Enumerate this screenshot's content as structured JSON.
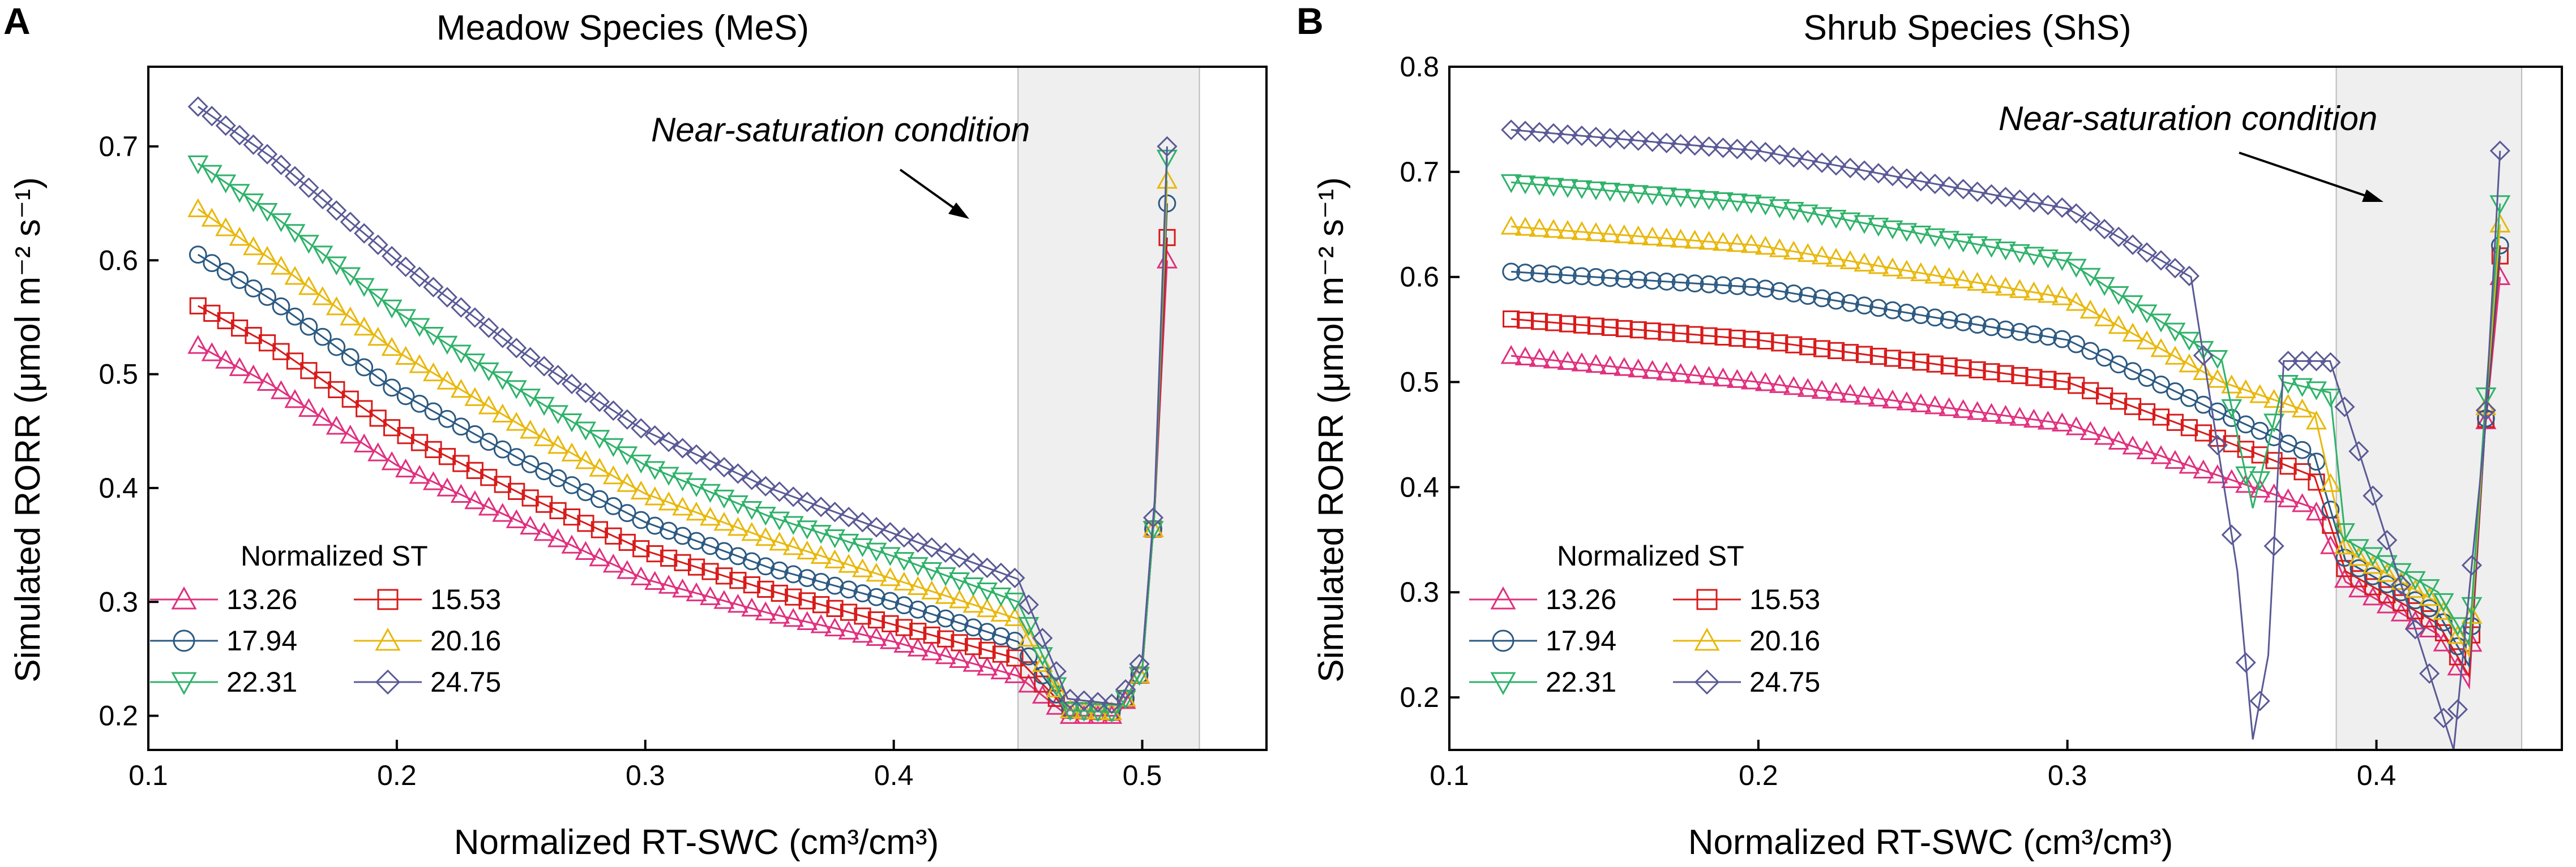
{
  "panels": [
    {
      "letter": "A",
      "title": "Meadow Species (MeS)",
      "xlabel": "Normalized RT-SWC (cm³/cm³)",
      "ylabel": "Simulated RORR (μmol m⁻² s⁻¹)",
      "annotation": "Near-saturation condition",
      "legend_title": "Normalized ST"
    },
    {
      "letter": "B",
      "title": "Shrub Species (ShS)",
      "xlabel": "Normalized RT-SWC (cm³/cm³)",
      "ylabel": "Simulated RORR (μmol m⁻² s⁻¹)",
      "annotation": "Near-saturation condition",
      "legend_title": "Normalized ST"
    }
  ],
  "colors": {
    "s13_26": "#e0307f",
    "s15_53": "#d81b1b",
    "s17_94": "#2c5a82",
    "s20_16": "#e8b80c",
    "s22_31": "#2fb26a",
    "s24_75": "#5a5a96",
    "shade": "#efefef"
  },
  "chart_data": [
    {
      "type": "scatter",
      "title": "Meadow Species (MeS)",
      "xlabel": "Normalized RT-SWC (cm³/cm³)",
      "ylabel": "Simulated RORR (μmol m⁻² s⁻¹)",
      "xlim": [
        0.1,
        0.55
      ],
      "ylim": [
        0.17,
        0.77
      ],
      "xticks": [
        "0.1",
        "0.2",
        "0.3",
        "0.4",
        "0.5"
      ],
      "xtick_values": [
        0.1,
        0.2,
        0.3,
        0.4,
        0.5
      ],
      "yticks": [
        "0.2",
        "0.3",
        "0.4",
        "0.5",
        "0.6",
        "0.7"
      ],
      "ytick_values": [
        0.2,
        0.3,
        0.4,
        0.5,
        0.6,
        0.7
      ],
      "shaded_region": [
        0.45,
        0.523
      ],
      "legend_title": "Normalized ST",
      "series": [
        {
          "name": "13.26",
          "marker": "triangle-up",
          "color_key": "s13_26",
          "x": [
            0.12,
            0.15,
            0.2,
            0.25,
            0.3,
            0.35,
            0.4,
            0.45,
            0.47,
            0.49,
            0.5,
            0.505,
            0.51
          ],
          "y": [
            0.525,
            0.49,
            0.42,
            0.37,
            0.32,
            0.29,
            0.265,
            0.235,
            0.2,
            0.2,
            0.24,
            0.38,
            0.6
          ]
        },
        {
          "name": "15.53",
          "marker": "square",
          "color_key": "s15_53",
          "x": [
            0.12,
            0.15,
            0.2,
            0.25,
            0.3,
            0.35,
            0.4,
            0.45,
            0.47,
            0.49,
            0.5,
            0.505,
            0.51
          ],
          "y": [
            0.56,
            0.525,
            0.45,
            0.395,
            0.345,
            0.31,
            0.28,
            0.25,
            0.205,
            0.203,
            0.24,
            0.38,
            0.62
          ]
        },
        {
          "name": "17.94",
          "marker": "circle",
          "color_key": "s17_94",
          "x": [
            0.12,
            0.15,
            0.2,
            0.25,
            0.3,
            0.35,
            0.4,
            0.45,
            0.47,
            0.49,
            0.5,
            0.505,
            0.51
          ],
          "y": [
            0.605,
            0.565,
            0.485,
            0.425,
            0.37,
            0.33,
            0.3,
            0.265,
            0.205,
            0.203,
            0.24,
            0.38,
            0.65
          ]
        },
        {
          "name": "20.16",
          "marker": "triangle-up",
          "color_key": "s20_16",
          "x": [
            0.12,
            0.15,
            0.2,
            0.25,
            0.3,
            0.35,
            0.4,
            0.45,
            0.47,
            0.49,
            0.5,
            0.505,
            0.51
          ],
          "y": [
            0.645,
            0.6,
            0.52,
            0.455,
            0.395,
            0.355,
            0.32,
            0.285,
            0.205,
            0.203,
            0.24,
            0.38,
            0.67
          ]
        },
        {
          "name": "22.31",
          "marker": "triangle-down",
          "color_key": "s22_31",
          "x": [
            0.12,
            0.15,
            0.2,
            0.25,
            0.3,
            0.35,
            0.4,
            0.45,
            0.47,
            0.49,
            0.5,
            0.505,
            0.51
          ],
          "y": [
            0.685,
            0.64,
            0.555,
            0.485,
            0.42,
            0.375,
            0.34,
            0.3,
            0.205,
            0.203,
            0.24,
            0.38,
            0.69
          ]
        },
        {
          "name": "24.75",
          "marker": "diamond",
          "color_key": "s24_75",
          "x": [
            0.12,
            0.15,
            0.2,
            0.25,
            0.3,
            0.35,
            0.4,
            0.45,
            0.47,
            0.49,
            0.5,
            0.505,
            0.51
          ],
          "y": [
            0.735,
            0.69,
            0.6,
            0.52,
            0.45,
            0.4,
            0.36,
            0.32,
            0.215,
            0.21,
            0.25,
            0.39,
            0.7
          ]
        }
      ]
    },
    {
      "type": "scatter",
      "title": "Shrub Species (ShS)",
      "xlabel": "Normalized RT-SWC (cm³/cm³)",
      "ylabel": "Simulated RORR (μmol m⁻² s⁻¹)",
      "xlim": [
        0.1,
        0.46
      ],
      "ylim": [
        0.15,
        0.8
      ],
      "xticks": [
        "0.1",
        "0.2",
        "0.3",
        "0.4"
      ],
      "xtick_values": [
        0.1,
        0.2,
        0.3,
        0.4
      ],
      "yticks": [
        "0.2",
        "0.3",
        "0.4",
        "0.5",
        "0.6",
        "0.7",
        "0.8"
      ],
      "ytick_values": [
        0.2,
        0.3,
        0.4,
        0.5,
        0.6,
        0.7,
        0.8
      ],
      "shaded_region": [
        0.387,
        0.447
      ],
      "legend_title": "Normalized ST",
      "series": [
        {
          "name": "13.26",
          "marker": "triangle-up",
          "color_key": "s13_26",
          "x": [
            0.12,
            0.2,
            0.3,
            0.35,
            0.38,
            0.39,
            0.42,
            0.43,
            0.435,
            0.44
          ],
          "y": [
            0.525,
            0.5,
            0.46,
            0.41,
            0.38,
            0.31,
            0.26,
            0.21,
            0.45,
            0.6
          ]
        },
        {
          "name": "15.53",
          "marker": "square",
          "color_key": "s15_53",
          "x": [
            0.12,
            0.2,
            0.3,
            0.35,
            0.38,
            0.39,
            0.42,
            0.43,
            0.435,
            0.44
          ],
          "y": [
            0.56,
            0.54,
            0.5,
            0.445,
            0.41,
            0.32,
            0.27,
            0.22,
            0.45,
            0.62
          ]
        },
        {
          "name": "17.94",
          "marker": "circle",
          "color_key": "s17_94",
          "x": [
            0.12,
            0.2,
            0.3,
            0.35,
            0.38,
            0.39,
            0.42,
            0.43,
            0.435,
            0.44
          ],
          "y": [
            0.605,
            0.59,
            0.54,
            0.47,
            0.43,
            0.33,
            0.28,
            0.23,
            0.45,
            0.63
          ]
        },
        {
          "name": "20.16",
          "marker": "triangle-up",
          "color_key": "s20_16",
          "x": [
            0.12,
            0.2,
            0.3,
            0.35,
            0.38,
            0.39,
            0.42,
            0.43,
            0.435,
            0.44
          ],
          "y": [
            0.648,
            0.63,
            0.58,
            0.5,
            0.47,
            0.34,
            0.29,
            0.24,
            0.46,
            0.65
          ]
        },
        {
          "name": "22.31",
          "marker": "triangle-down",
          "color_key": "s22_31",
          "x": [
            0.12,
            0.2,
            0.3,
            0.35,
            0.36,
            0.37,
            0.385,
            0.39,
            0.42,
            0.43,
            0.435,
            0.44
          ],
          "y": [
            0.69,
            0.67,
            0.615,
            0.52,
            0.38,
            0.5,
            0.49,
            0.35,
            0.3,
            0.25,
            0.47,
            0.67
          ]
        },
        {
          "name": "24.75",
          "marker": "diamond",
          "color_key": "s24_75",
          "x": [
            0.12,
            0.2,
            0.3,
            0.34,
            0.355,
            0.36,
            0.365,
            0.37,
            0.385,
            0.425,
            0.435,
            0.44
          ],
          "y": [
            0.74,
            0.72,
            0.665,
            0.6,
            0.32,
            0.16,
            0.24,
            0.52,
            0.52,
            0.15,
            0.45,
            0.72
          ]
        }
      ]
    }
  ]
}
